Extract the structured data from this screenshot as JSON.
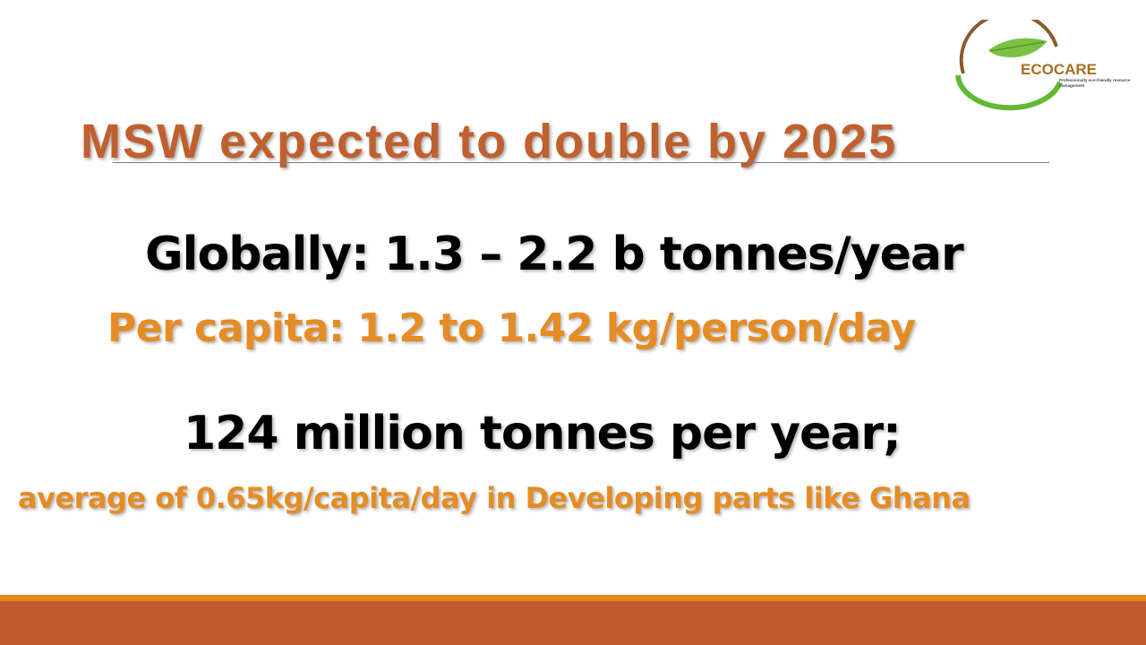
{
  "logo": {
    "name": "ECOCARE",
    "tagline": "Professionally eco-friendly resource management"
  },
  "slide": {
    "title": "MSW expected to double by 2025",
    "line1": "Globally: 1.3 – 2.2 b tonnes/year",
    "line2": "Per capita: 1.2 to 1.42 kg/person/day",
    "line3": "124 million tonnes per year;",
    "line4": "average of 0.65kg/capita/day in Developing parts like Ghana"
  },
  "colors": {
    "title": "#c0602f",
    "accent_orange": "#e58c24",
    "body_text": "#000000",
    "footer_dark": "#be5a2c",
    "footer_light": "#e2891f",
    "logo_green": "#5fb833"
  }
}
